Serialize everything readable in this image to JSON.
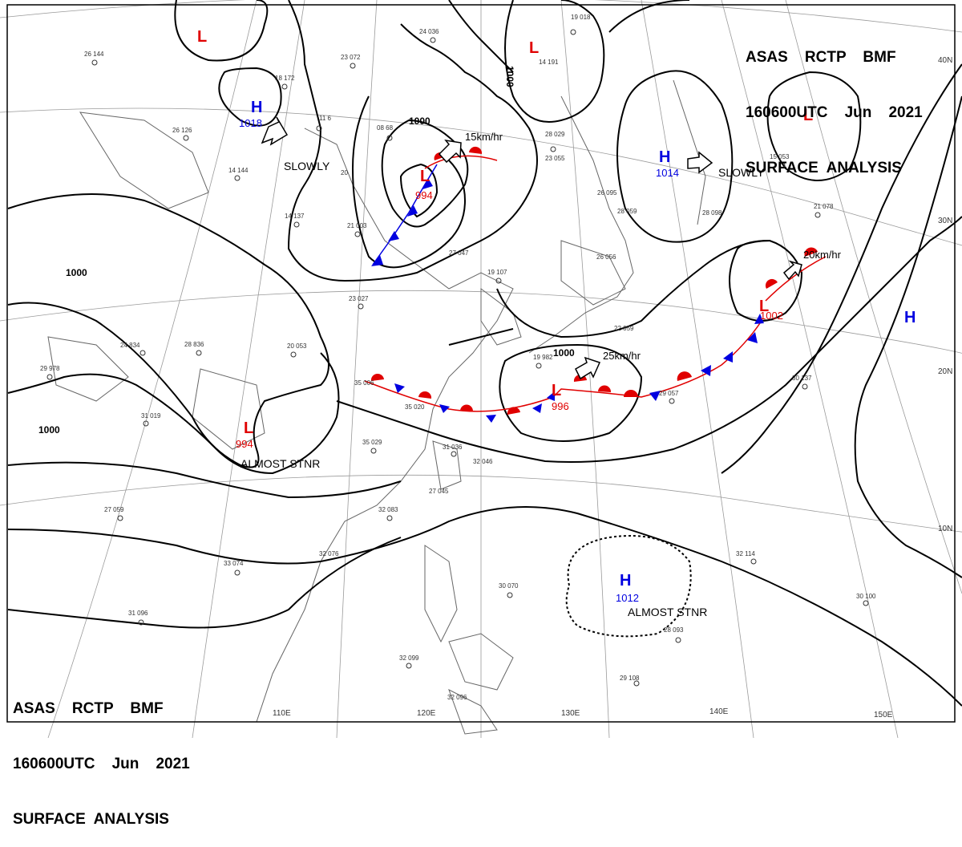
{
  "header": {
    "line1": "ASAS    RCTP    BMF",
    "line2": "160600UTC    Jun    2021",
    "line3": "SURFACE  ANALYSIS"
  },
  "lon_labels": [
    "110E",
    "120E",
    "130E",
    "140E",
    "150E"
  ],
  "lat_labels": [
    "40N",
    "30N",
    "20N",
    "10N"
  ],
  "isobar_label": "1000",
  "colors": {
    "low": "#e00000",
    "high": "#0000e0",
    "warm_front": "#e00000",
    "cold_front": "#0000e0",
    "isobar": "#000000",
    "coast": "#666666"
  },
  "pressure_systems": [
    {
      "type": "L",
      "value": "",
      "note": ""
    },
    {
      "type": "L",
      "value": "",
      "note": ""
    },
    {
      "type": "L",
      "value": "",
      "note": ""
    },
    {
      "type": "H",
      "value": "1018",
      "note": "SLOWLY"
    },
    {
      "type": "L",
      "value": "994",
      "note": "15km/hr"
    },
    {
      "type": "H",
      "value": "1014",
      "note": "SLOWLY"
    },
    {
      "type": "L",
      "value": "1002",
      "note": "20km/hr"
    },
    {
      "type": "H",
      "value": "",
      "note": ""
    },
    {
      "type": "L",
      "value": "996",
      "note": "25km/hr"
    },
    {
      "type": "L",
      "value": "994",
      "note": "ALMOST STNR"
    },
    {
      "type": "H",
      "value": "1012",
      "note": "ALMOST STNR"
    }
  ],
  "stations": [
    "26 144",
    "18 172",
    "23 072",
    "24 036",
    "19 018",
    "14 191",
    "11 6",
    "26 126",
    "08 68",
    "28 029",
    "23 055",
    "14 144",
    "20",
    "14 137",
    "21 003",
    "27 047",
    "19 107",
    "23 027",
    "24 834",
    "28 836",
    "29 978",
    "31 019",
    "35 006",
    "35 020",
    "35 029",
    "31 036",
    "32 046",
    "27 045",
    "32 083",
    "27 059",
    "33 074",
    "32 076",
    "31 096",
    "30 070",
    "32 099",
    "32 096",
    "29 108",
    "28 093",
    "32 114",
    "30 100",
    "20 053",
    "26 056",
    "28 098",
    "21 078",
    "15 053",
    "30 137",
    "29 057",
    "19 982",
    "22 059",
    "26 095",
    "28 059"
  ]
}
